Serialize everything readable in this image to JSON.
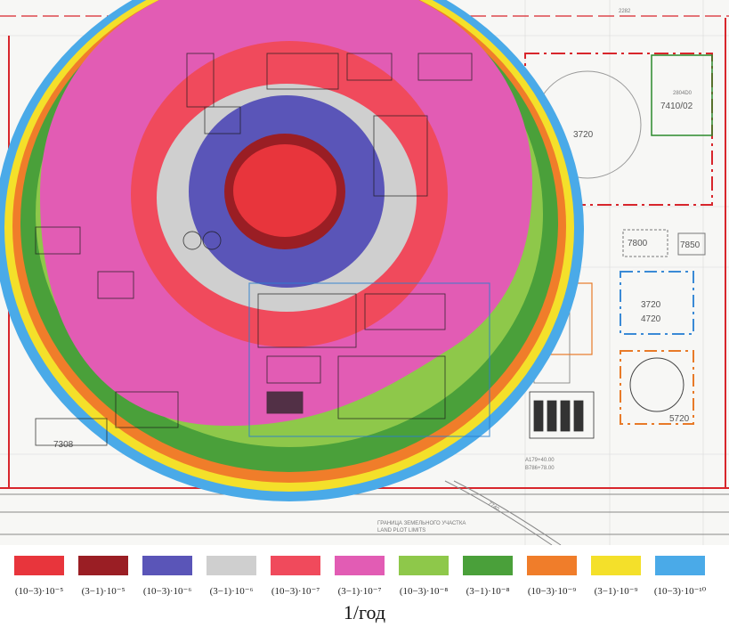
{
  "map": {
    "site_labels": {
      "dim_top": "2282",
      "bld_7410_code": "2804D0",
      "bld_7410": "7410/02",
      "tank_3720": "3720",
      "bld_7800": "7800",
      "bld_7850": "7850",
      "pad_upper": "3720",
      "pad_lower": "4720",
      "tank_5720": "5720",
      "bld_7308": "7308",
      "coord_1": "A179+40.00",
      "coord_2": "B786+78.00",
      "road_740": "7740",
      "plot_ru": "ГРАНИЦА ЗЕМЕЛЬНОГО УЧАСТКА",
      "plot_en": "LAND PLOT LIMITS"
    },
    "risk_zone_colors": [
      "#e8353c",
      "#9a1e24",
      "#5a55b8",
      "#cfcfcf",
      "#f04a5c",
      "#e25cb4",
      "#8ec84a",
      "#4aa03a",
      "#f07d2a",
      "#f4e02a",
      "#4aaae8"
    ]
  },
  "legend": {
    "items": [
      {
        "label": "(10−3)·10⁻⁵",
        "color": "#e8353c"
      },
      {
        "label": "(3−1)·10⁻⁵",
        "color": "#9a1e24"
      },
      {
        "label": "(10−3)·10⁻⁶",
        "color": "#5a55b8"
      },
      {
        "label": "(3−1)·10⁻⁶",
        "color": "#cfcfcf"
      },
      {
        "label": "(10−3)·10⁻⁷",
        "color": "#f04a5c"
      },
      {
        "label": "(3−1)·10⁻⁷",
        "color": "#e25cb4"
      },
      {
        "label": "(10−3)·10⁻⁸",
        "color": "#8ec84a"
      },
      {
        "label": "(3−1)·10⁻⁸",
        "color": "#4aa03a"
      },
      {
        "label": "(10−3)·10⁻⁹",
        "color": "#f07d2a"
      },
      {
        "label": "(3−1)·10⁻⁹",
        "color": "#f4e02a"
      },
      {
        "label": "(10−3)·10⁻¹⁰",
        "color": "#4aaae8"
      }
    ]
  },
  "unit_label": "1/год"
}
